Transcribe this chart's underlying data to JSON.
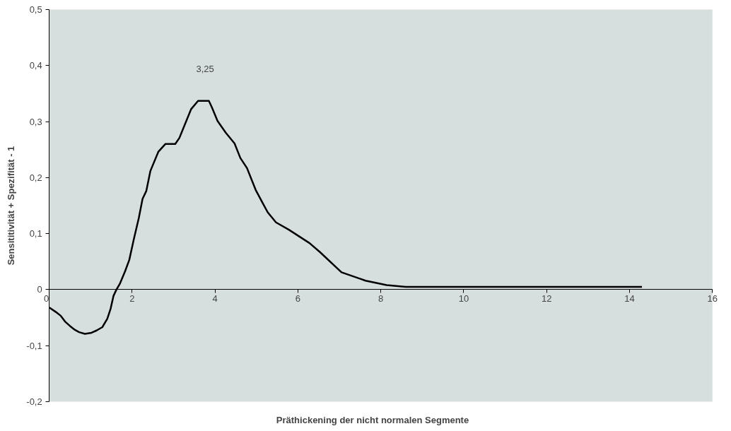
{
  "chart_data": {
    "type": "line",
    "xlabel": "Präthickening der nicht normalen Segmente",
    "ylabel": "Sensititivität + Spezifität - 1",
    "x": [
      0,
      0.16,
      0.28,
      0.38,
      0.5,
      0.62,
      0.72,
      0.86,
      1.02,
      1.14,
      1.28,
      1.4,
      1.48,
      1.55,
      1.62,
      1.7,
      1.83,
      1.93,
      2.04,
      2.16,
      2.25,
      2.34,
      2.44,
      2.63,
      2.8,
      3.04,
      3.14,
      3.42,
      3.59,
      3.85,
      3.92,
      4.06,
      4.26,
      4.47,
      4.61,
      4.77,
      4.98,
      5.16,
      5.27,
      5.47,
      5.78,
      6.28,
      6.53,
      7.05,
      7.63,
      8.14,
      8.6,
      10,
      12,
      14.3
    ],
    "series": [
      {
        "color": "#000000",
        "values": [
          -0.032,
          -0.04,
          -0.047,
          -0.057,
          -0.065,
          -0.072,
          -0.076,
          -0.079,
          -0.077,
          -0.073,
          -0.067,
          -0.052,
          -0.034,
          -0.011,
          0,
          0.01,
          0.033,
          0.053,
          0.09,
          0.128,
          0.162,
          0.176,
          0.212,
          0.246,
          0.26,
          0.26,
          0.271,
          0.322,
          0.337,
          0.337,
          0.326,
          0.301,
          0.28,
          0.261,
          0.235,
          0.217,
          0.178,
          0.153,
          0.138,
          0.12,
          0.107,
          0.083,
          0.067,
          0.031,
          0.016,
          0.008,
          0.005,
          0.005,
          0.005,
          0.005
        ]
      }
    ],
    "annotations": [
      "3,25"
    ],
    "xlim": [
      0,
      16
    ],
    "xticks": [
      0,
      2,
      4,
      6,
      8,
      10,
      12,
      14,
      16
    ],
    "ylim": [
      -0.2,
      0.5
    ],
    "yticks": [
      {
        "value": -0.2,
        "label": "-0,2"
      },
      {
        "value": -0.1,
        "label": "-0,1"
      },
      {
        "value": 0,
        "label": "0"
      },
      {
        "value": 0.1,
        "label": "0,1"
      },
      {
        "value": 0.2,
        "label": "0,2"
      },
      {
        "value": 0.3,
        "label": "0,3"
      },
      {
        "value": 0.4,
        "label": "0,4"
      },
      {
        "value": 0.5,
        "label": "0,5"
      }
    ],
    "grid": false,
    "marker": "none",
    "line_style": "solid"
  }
}
